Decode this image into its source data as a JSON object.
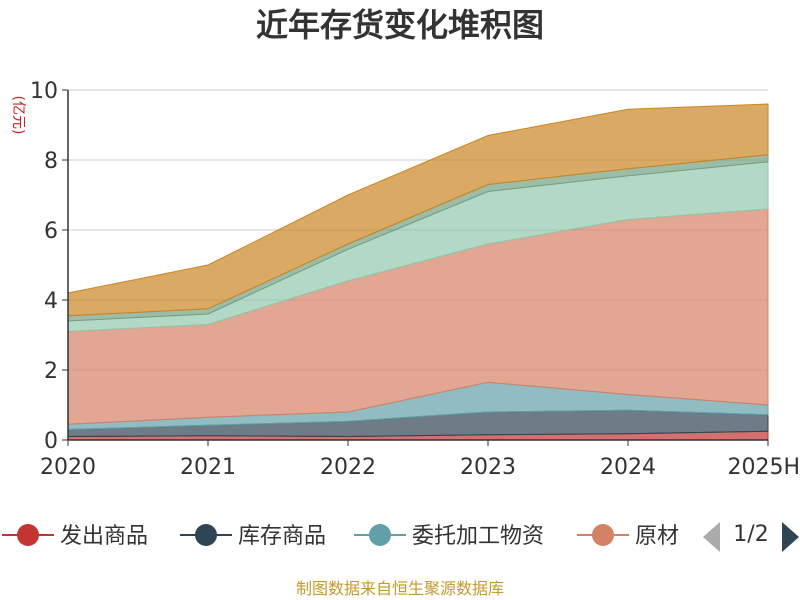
{
  "chart_data": {
    "type": "area",
    "stacked": true,
    "title": "近年存货变化堆积图",
    "ylabel": "(亿元)",
    "x": [
      "2020",
      "2021",
      "2022",
      "2023",
      "2024",
      "2025H"
    ],
    "ylim": [
      0,
      10
    ],
    "yticks": [
      0,
      2,
      4,
      6,
      8,
      10
    ],
    "grid": true,
    "series": [
      {
        "name": "发出商品",
        "color": "#c23531",
        "values": [
          0.1,
          0.12,
          0.1,
          0.15,
          0.18,
          0.25
        ]
      },
      {
        "name": "库存商品",
        "color": "#2f4554",
        "values": [
          0.2,
          0.3,
          0.43,
          0.65,
          0.67,
          0.47
        ]
      },
      {
        "name": "委托加工物资",
        "color": "#61a0a8",
        "values": [
          0.15,
          0.23,
          0.27,
          0.85,
          0.45,
          0.28
        ]
      },
      {
        "name": "原材料",
        "color": "#d48265",
        "values": [
          2.65,
          2.65,
          3.75,
          3.95,
          5.0,
          5.6
        ]
      },
      {
        "name": "",
        "color": "#91c7ae",
        "values": [
          0.3,
          0.3,
          0.9,
          1.5,
          1.25,
          1.35
        ]
      },
      {
        "name": "",
        "color": "#749f83",
        "values": [
          0.15,
          0.15,
          0.15,
          0.2,
          0.2,
          0.2
        ]
      },
      {
        "name": "",
        "color": "#ca8622",
        "values": [
          0.65,
          1.25,
          1.4,
          1.4,
          1.7,
          1.45
        ]
      }
    ],
    "legend": {
      "placement": "bottom",
      "visible_items": [
        "发出商品",
        "库存商品",
        "委托加工物资",
        "原材"
      ],
      "page": "1/2"
    }
  },
  "source_text": "制图数据来自恒生聚源数据库"
}
